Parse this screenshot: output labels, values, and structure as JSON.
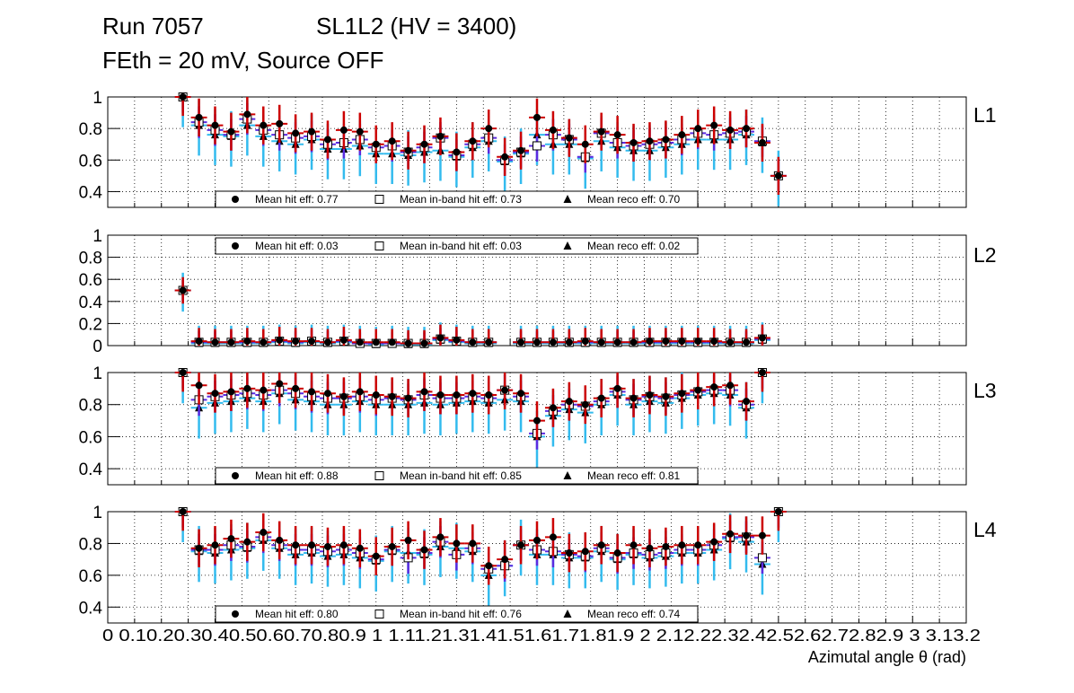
{
  "title": {
    "run": "Run 7057",
    "chamber": "SL1L2 (HV = 3400)",
    "conditions": "FEth = 20 mV, Source OFF"
  },
  "colors": {
    "hit": "#000000",
    "hit_err": "#cc0000",
    "inband_err": "#5b2be0",
    "reco_err": "#33bbee",
    "grid": "#000000"
  },
  "chart_data": {
    "type": "scatter",
    "xlabel": "Azimutal angle θ (rad)",
    "xlim": [
      0,
      3.2
    ],
    "xticks": [
      0,
      0.1,
      0.2,
      0.3,
      0.4,
      0.5,
      0.6,
      0.7,
      0.8,
      0.9,
      1,
      1.1,
      1.2,
      1.3,
      1.4,
      1.5,
      1.6,
      1.7,
      1.8,
      1.9,
      2,
      2.1,
      2.2,
      2.3,
      2.4,
      2.5,
      2.6,
      2.7,
      2.8,
      2.9,
      3,
      3.1,
      3.2
    ],
    "xtick_labels": "0 0.10.20.30.40.50.60.70.80.9 1 1.11.21.31.41.51.61.71.81.9 2 2.12.22.32.42.52.62.72.82.9 3 3.13.2",
    "bin_x": [
      0.28,
      0.34,
      0.4,
      0.46,
      0.52,
      0.58,
      0.64,
      0.7,
      0.76,
      0.82,
      0.88,
      0.94,
      1.0,
      1.06,
      1.12,
      1.18,
      1.24,
      1.3,
      1.36,
      1.42,
      1.48,
      1.54,
      1.6,
      1.66,
      1.72,
      1.78,
      1.84,
      1.9,
      1.96,
      2.02,
      2.08,
      2.14,
      2.2,
      2.26,
      2.32,
      2.38,
      2.44,
      2.5,
      2.56,
      2.62,
      2.68,
      2.74
    ],
    "panels": [
      {
        "label": "L1",
        "ylim": [
          0.3,
          1.0
        ],
        "yticks": [
          0.4,
          0.6,
          0.8,
          1
        ],
        "ytick_labels": [
          "0.4",
          "0.6",
          "0.8",
          "1"
        ],
        "legend": {
          "hit": "Mean hit  eff: 0.77",
          "inband": "Mean in-band hit eff: 0.73",
          "reco": "Mean reco eff: 0.70",
          "position": "bottom"
        },
        "hit_eff": [
          1.0,
          0.87,
          0.82,
          0.78,
          0.89,
          0.82,
          0.83,
          0.77,
          0.78,
          0.73,
          0.79,
          0.78,
          0.7,
          0.72,
          0.66,
          0.7,
          0.75,
          0.65,
          0.72,
          0.8,
          0.62,
          0.66,
          0.87,
          0.79,
          0.74,
          0.7,
          0.78,
          0.76,
          0.71,
          0.72,
          0.73,
          0.76,
          0.8,
          0.82,
          0.79,
          0.8,
          0.71,
          0.5,
          null,
          null,
          null,
          null
        ],
        "inband_eff": [
          1.0,
          0.84,
          0.79,
          0.76,
          0.86,
          0.79,
          0.76,
          0.74,
          0.75,
          0.7,
          0.71,
          0.73,
          0.68,
          0.69,
          0.65,
          0.68,
          0.74,
          0.63,
          0.7,
          0.74,
          0.6,
          0.65,
          0.69,
          0.76,
          0.73,
          0.62,
          0.77,
          0.71,
          0.69,
          0.7,
          0.71,
          0.73,
          0.77,
          0.76,
          0.77,
          0.78,
          0.72,
          0.5,
          null,
          null,
          null,
          null
        ],
        "reco_eff": [
          1.0,
          0.82,
          0.76,
          0.75,
          0.82,
          0.75,
          0.72,
          0.7,
          0.73,
          0.67,
          0.67,
          0.69,
          0.64,
          0.64,
          0.63,
          0.65,
          0.66,
          0.62,
          0.68,
          0.72,
          0.59,
          0.64,
          0.76,
          0.7,
          0.7,
          0.61,
          0.72,
          0.68,
          0.66,
          0.66,
          0.68,
          0.7,
          0.73,
          0.73,
          0.73,
          0.76,
          0.71,
          0.5,
          null,
          null,
          null,
          null
        ]
      },
      {
        "label": "L2",
        "ylim": [
          0.0,
          1.0
        ],
        "yticks": [
          0,
          0.2,
          0.4,
          0.6,
          0.8,
          1
        ],
        "ytick_labels": [
          "0",
          "0.2",
          "0.4",
          "0.6",
          "0.8",
          "1"
        ],
        "legend": {
          "hit": "Mean hit  eff: 0.03",
          "inband": "Mean in-band hit eff: 0.03",
          "reco": "Mean reco eff: 0.02",
          "position": "top"
        },
        "hit_eff": [
          0.5,
          0.04,
          0.03,
          0.03,
          0.04,
          0.03,
          0.05,
          0.04,
          0.04,
          0.03,
          0.05,
          0.03,
          0.03,
          0.03,
          0.02,
          0.02,
          0.07,
          0.05,
          0.03,
          0.03,
          null,
          0.03,
          0.03,
          0.03,
          0.03,
          0.04,
          0.03,
          0.03,
          0.03,
          0.04,
          0.04,
          0.04,
          0.04,
          0.04,
          0.03,
          0.03,
          0.07,
          null,
          null,
          null,
          null,
          null
        ],
        "inband_eff": [
          0.5,
          0.03,
          0.03,
          0.03,
          0.03,
          0.03,
          0.04,
          0.03,
          0.04,
          0.03,
          0.04,
          0.02,
          0.02,
          0.02,
          0.02,
          0.02,
          0.06,
          0.04,
          0.03,
          0.03,
          null,
          0.03,
          0.03,
          0.03,
          0.03,
          0.03,
          0.03,
          0.03,
          0.03,
          0.03,
          0.03,
          0.03,
          0.03,
          0.03,
          0.03,
          0.03,
          0.06,
          null,
          null,
          null,
          null,
          null
        ],
        "reco_eff": [
          0.5,
          0.02,
          0.02,
          0.02,
          0.02,
          0.02,
          0.03,
          0.02,
          0.03,
          0.02,
          0.03,
          0.02,
          0.01,
          0.02,
          0.01,
          0.01,
          0.05,
          0.03,
          0.02,
          0.02,
          null,
          0.02,
          0.02,
          0.02,
          0.02,
          0.02,
          0.02,
          0.02,
          0.02,
          0.02,
          0.02,
          0.02,
          0.02,
          0.02,
          0.02,
          0.02,
          0.05,
          null,
          null,
          null,
          null,
          null
        ]
      },
      {
        "label": "L3",
        "ylim": [
          0.3,
          1.0
        ],
        "yticks": [
          0.4,
          0.6,
          0.8,
          1
        ],
        "ytick_labels": [
          "0.4",
          "0.6",
          "0.8",
          "1"
        ],
        "legend": {
          "hit": "Mean hit  eff: 0.88",
          "inband": "Mean in-band hit eff: 0.85",
          "reco": "Mean reco eff: 0.81",
          "position": "bottom"
        },
        "hit_eff": [
          1.0,
          0.92,
          0.87,
          0.88,
          0.9,
          0.89,
          0.93,
          0.9,
          0.88,
          0.87,
          0.85,
          0.88,
          0.86,
          0.85,
          0.84,
          0.88,
          0.86,
          0.86,
          0.87,
          0.86,
          0.89,
          0.87,
          0.7,
          0.78,
          0.82,
          0.8,
          0.84,
          0.9,
          0.84,
          0.86,
          0.85,
          0.87,
          0.89,
          0.91,
          0.92,
          0.82,
          1.0,
          null,
          null,
          null,
          null,
          null
        ],
        "inband_eff": [
          1.0,
          0.83,
          0.85,
          0.86,
          0.87,
          0.86,
          0.89,
          0.87,
          0.85,
          0.84,
          0.84,
          0.85,
          0.83,
          0.84,
          0.83,
          0.86,
          0.84,
          0.84,
          0.85,
          0.84,
          0.89,
          0.85,
          0.62,
          0.76,
          0.8,
          0.79,
          0.82,
          0.88,
          0.83,
          0.85,
          0.84,
          0.86,
          0.88,
          0.89,
          0.89,
          0.8,
          1.0,
          null,
          null,
          null,
          null,
          null
        ],
        "reco_eff": [
          1.0,
          0.78,
          0.81,
          0.82,
          0.84,
          0.82,
          0.87,
          0.83,
          0.82,
          0.8,
          0.8,
          0.82,
          0.8,
          0.8,
          0.8,
          0.81,
          0.8,
          0.81,
          0.82,
          0.81,
          0.83,
          0.82,
          0.6,
          0.73,
          0.77,
          0.75,
          0.8,
          0.86,
          0.8,
          0.82,
          0.81,
          0.84,
          0.86,
          0.87,
          0.86,
          0.78,
          1.0,
          null,
          null,
          null,
          null,
          null
        ]
      },
      {
        "label": "L4",
        "ylim": [
          0.3,
          1.0
        ],
        "yticks": [
          0.4,
          0.6,
          0.8,
          1
        ],
        "ytick_labels": [
          "0.4",
          "0.6",
          "0.8",
          "1"
        ],
        "legend": {
          "hit": "Mean hit  eff: 0.80",
          "inband": "Mean in-band hit eff: 0.76",
          "reco": "Mean reco eff: 0.74",
          "position": "bottom"
        },
        "hit_eff": [
          1.0,
          0.77,
          0.79,
          0.83,
          0.81,
          0.87,
          0.82,
          0.79,
          0.79,
          0.78,
          0.79,
          0.77,
          0.72,
          0.78,
          0.82,
          0.76,
          0.84,
          0.8,
          0.8,
          0.66,
          0.7,
          0.79,
          0.82,
          0.84,
          0.74,
          0.75,
          0.79,
          0.74,
          0.79,
          0.77,
          0.78,
          0.79,
          0.79,
          0.81,
          0.86,
          0.85,
          0.85,
          1.0,
          null,
          null,
          null,
          null
        ],
        "inband_eff": [
          1.0,
          0.76,
          0.76,
          0.79,
          0.78,
          0.84,
          0.79,
          0.76,
          0.76,
          0.75,
          0.76,
          0.74,
          0.7,
          0.76,
          0.71,
          0.74,
          0.81,
          0.73,
          0.77,
          0.64,
          0.66,
          0.79,
          0.76,
          0.75,
          0.73,
          0.72,
          0.77,
          0.71,
          0.74,
          0.73,
          0.74,
          0.76,
          0.76,
          0.79,
          0.84,
          0.84,
          0.71,
          1.0,
          null,
          null,
          null,
          null
        ],
        "reco_eff": [
          1.0,
          0.75,
          0.74,
          0.76,
          0.77,
          0.82,
          0.77,
          0.73,
          0.74,
          0.72,
          0.73,
          0.71,
          0.69,
          0.75,
          0.74,
          0.73,
          0.78,
          0.77,
          0.75,
          0.6,
          0.66,
          0.79,
          0.73,
          0.73,
          0.71,
          0.71,
          0.75,
          0.7,
          0.73,
          0.71,
          0.72,
          0.74,
          0.74,
          0.76,
          0.83,
          0.81,
          0.67,
          1.0,
          null,
          null,
          null,
          null
        ]
      }
    ]
  }
}
